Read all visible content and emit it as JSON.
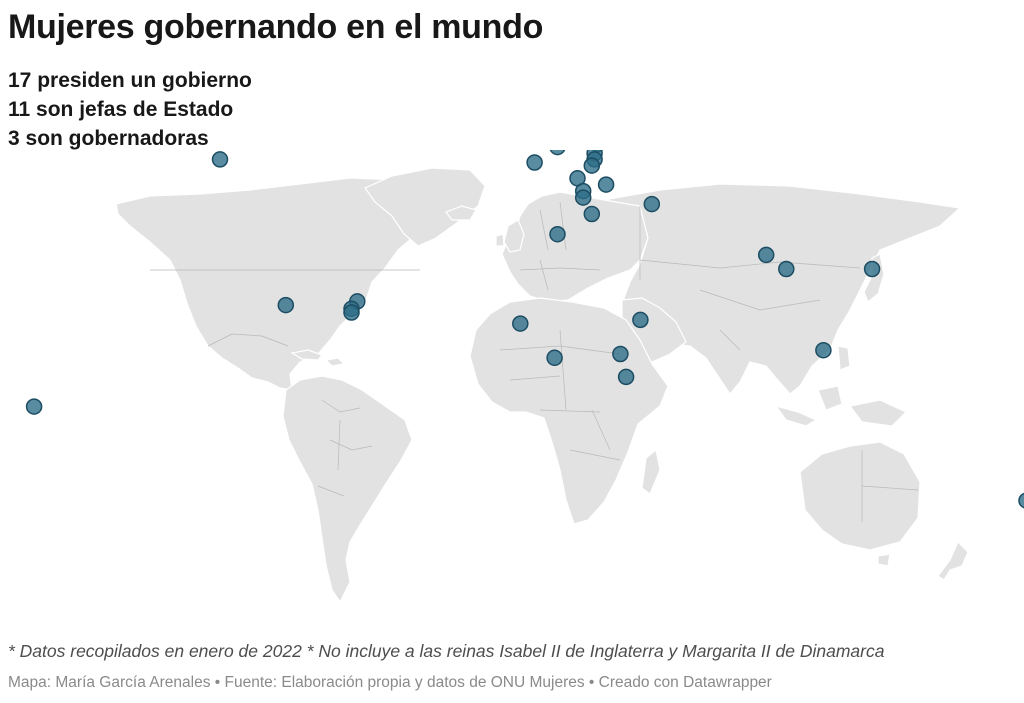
{
  "title": "Mujeres gobernando en el mundo",
  "stats": [
    "17 presiden un gobierno",
    "11 son jefas de Estado",
    "3 son gobernadoras"
  ],
  "map": {
    "land_color": "#e2e2e2",
    "marker_color": "#2c6b86",
    "marker_icon": "circle-marker",
    "markers": [
      {
        "lon": -107,
        "lat": 56
      },
      {
        "lon": -18,
        "lat": 65
      },
      {
        "lon": 3,
        "lat": 55
      },
      {
        "lon": 11,
        "lat": 60
      },
      {
        "lon": 25,
        "lat": 61
      },
      {
        "lon": 24,
        "lat": 58
      },
      {
        "lon": 24,
        "lat": 56
      },
      {
        "lon": 23,
        "lat": 54
      },
      {
        "lon": 18,
        "lat": 50
      },
      {
        "lon": 28,
        "lat": 48
      },
      {
        "lon": 20,
        "lat": 46
      },
      {
        "lon": 20,
        "lat": 44
      },
      {
        "lon": 23,
        "lat": 39
      },
      {
        "lon": 44,
        "lat": 42
      },
      {
        "lon": 11,
        "lat": 33
      },
      {
        "lon": 84,
        "lat": 27
      },
      {
        "lon": 91,
        "lat": 23
      },
      {
        "lon": 121,
        "lat": 23
      },
      {
        "lon": -84,
        "lat": 13
      },
      {
        "lon": -59,
        "lat": 14
      },
      {
        "lon": -61,
        "lat": 12
      },
      {
        "lon": -61,
        "lat": 11
      },
      {
        "lon": -2,
        "lat": 8
      },
      {
        "lon": 10,
        "lat": -1
      },
      {
        "lon": 40,
        "lat": 9
      },
      {
        "lon": 33,
        "lat": 0
      },
      {
        "lon": 35,
        "lat": -6
      },
      {
        "lon": 104,
        "lat": 1
      },
      {
        "lon": -172,
        "lat": -14
      },
      {
        "lon": 175,
        "lat": -41
      }
    ]
  },
  "note": "* Datos recopilados en enero de 2022 * No incluye a las reinas Isabel II de Inglaterra y Margarita II de Dinamarca",
  "credits": "Mapa: María García Arenales • Fuente: Elaboración propia y datos de ONU Mujeres • Creado con Datawrapper"
}
